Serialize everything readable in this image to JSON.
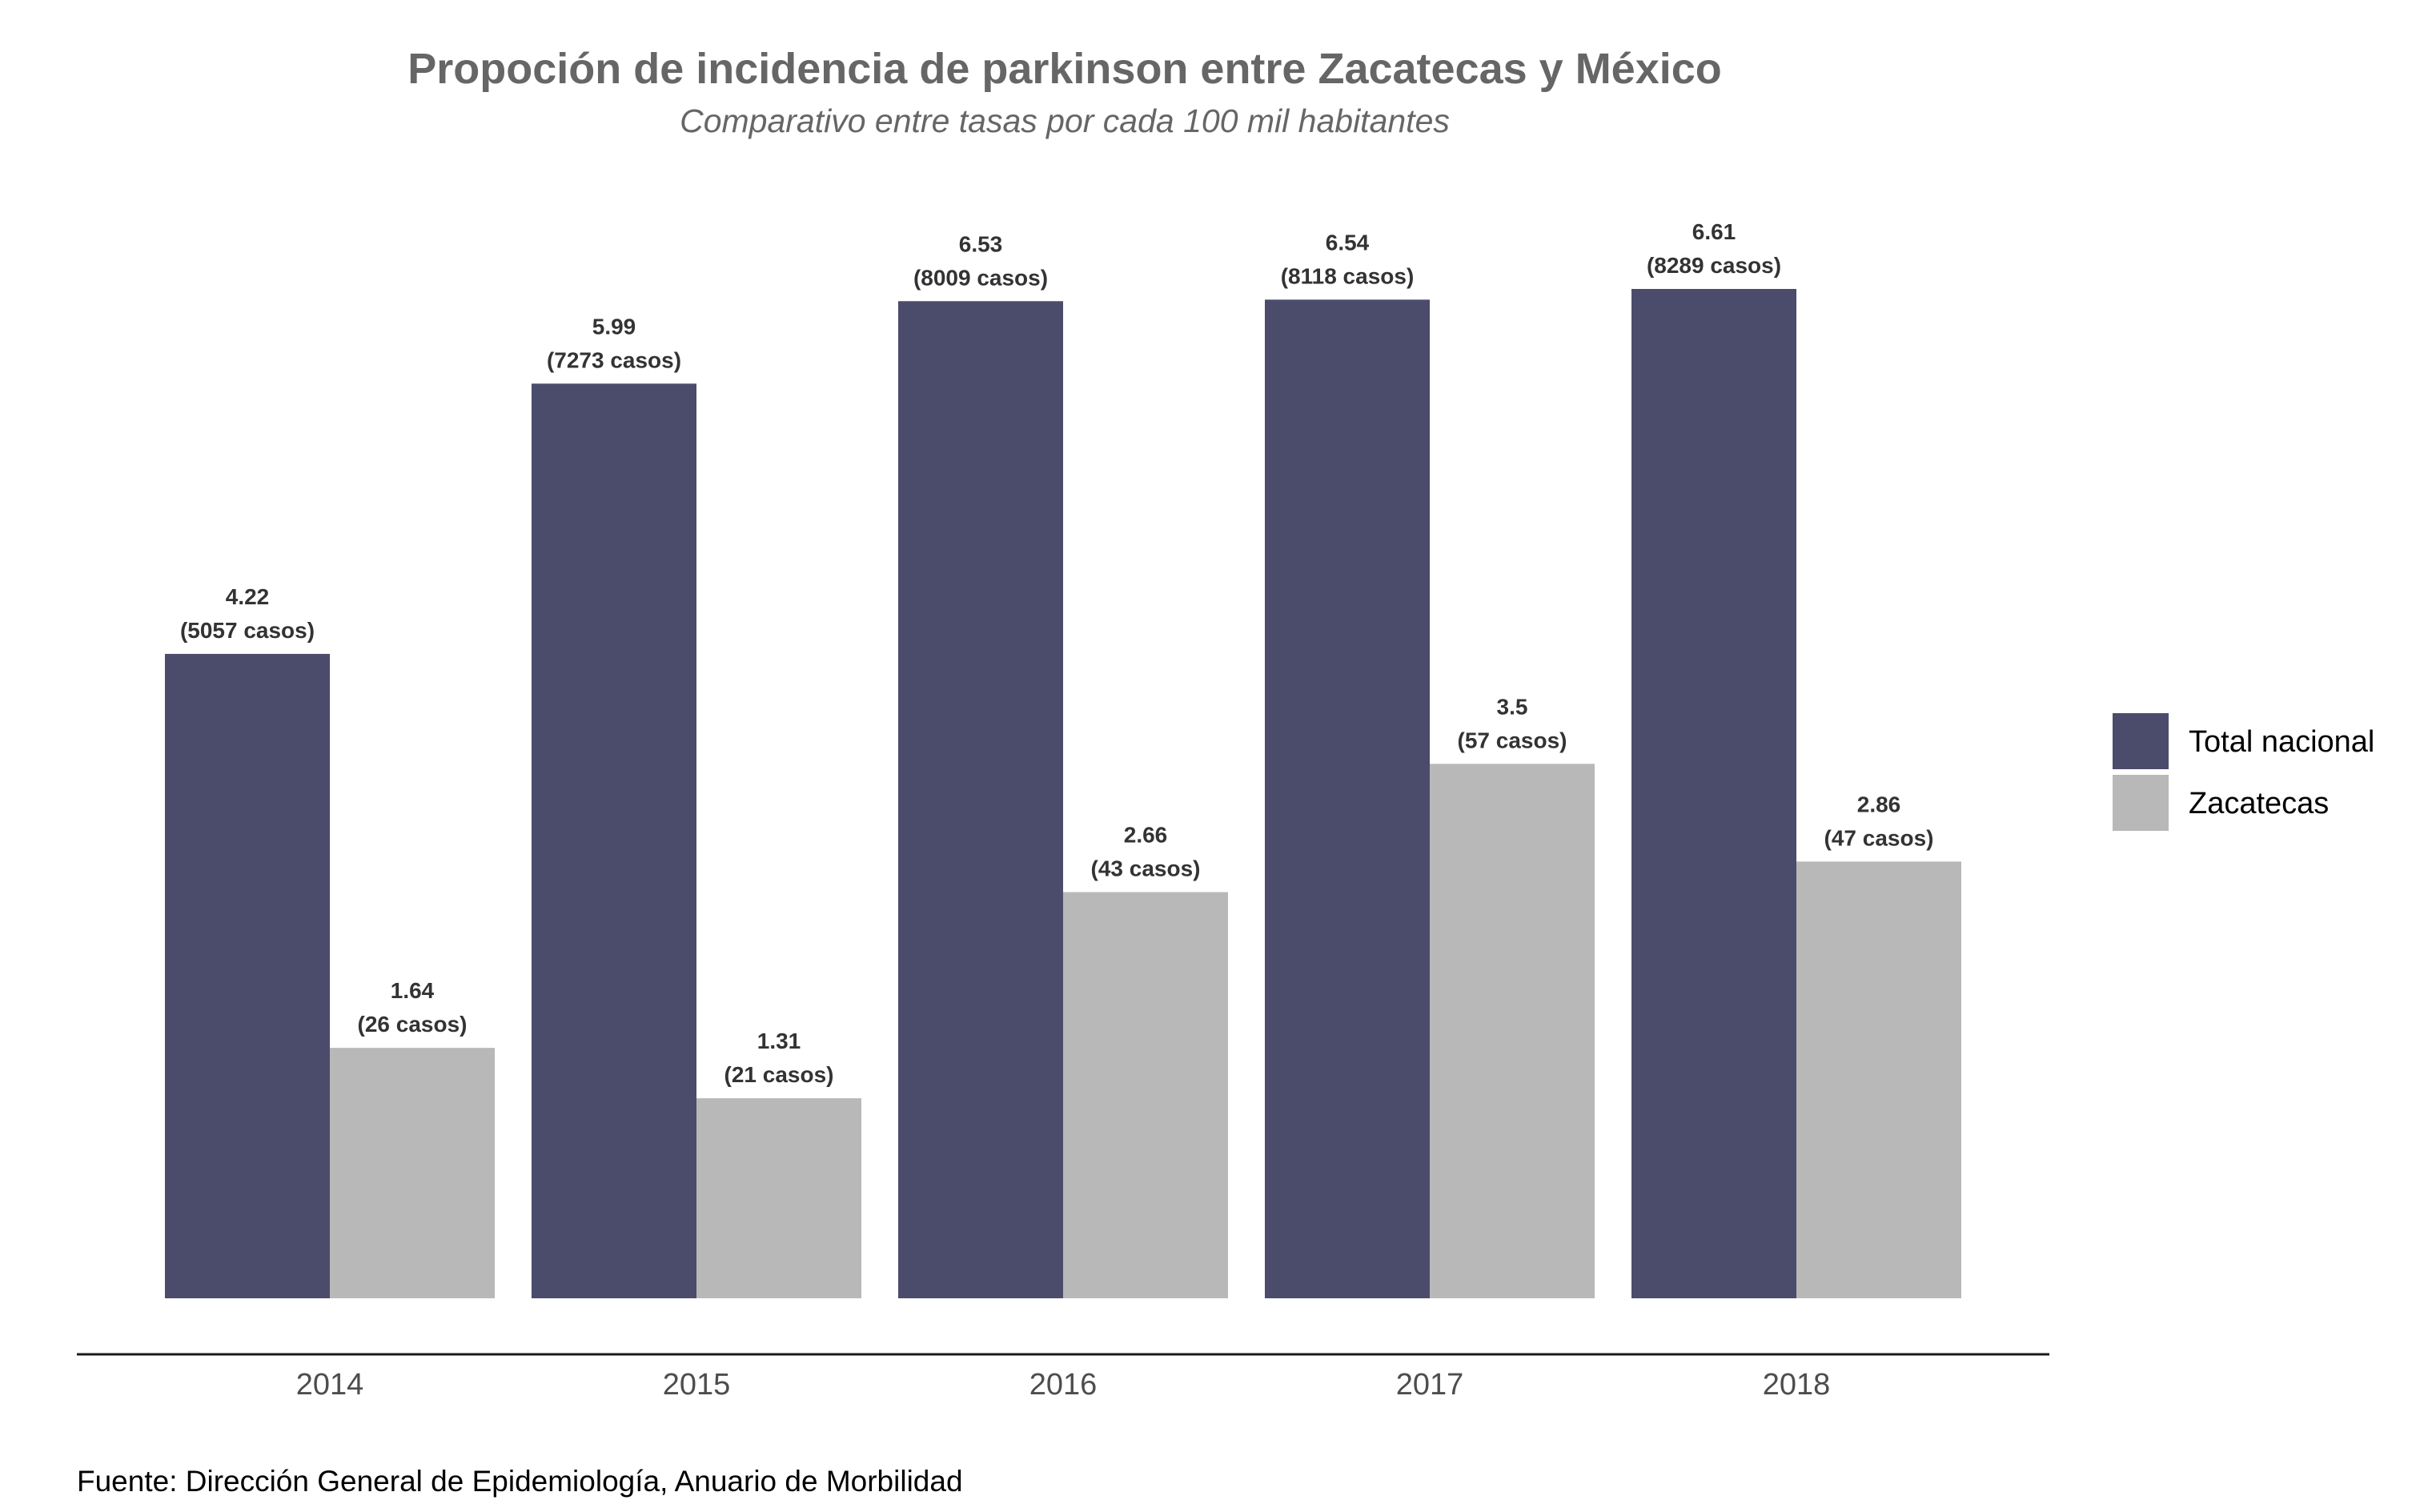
{
  "chart_data": {
    "type": "bar",
    "title": "Propoción de incidencia de parkinson entre Zacatecas y México",
    "subtitle": "Comparativo entre tasas por cada 100 mil habitantes",
    "caption": "Fuente: Dirección General de Epidemiología, Anuario de Morbilidad",
    "xlabel": "",
    "ylabel": "",
    "categories": [
      "2014",
      "2015",
      "2016",
      "2017",
      "2018"
    ],
    "ylim": [
      0,
      6.61
    ],
    "grid": false,
    "y_axis_visible": false,
    "legend_position": "right",
    "series": [
      {
        "name": "Total nacional",
        "color": "#4b4b6c",
        "values": [
          4.22,
          5.99,
          6.53,
          6.54,
          6.61
        ],
        "labels": [
          "4.22",
          "5.99",
          "6.53",
          "6.54",
          "6.61"
        ],
        "cases": [
          "(5057 casos)",
          "(7273 casos)",
          "(8009 casos)",
          "(8118 casos)",
          "(8289 casos)"
        ]
      },
      {
        "name": "Zacatecas",
        "color": "#b8b8b8",
        "values": [
          1.64,
          1.31,
          2.66,
          3.5,
          2.86
        ],
        "labels": [
          "1.64",
          "1.31",
          "2.66",
          "3.5",
          "2.86"
        ],
        "cases": [
          "(26 casos)",
          "(21 casos)",
          "(43 casos)",
          "(57 casos)",
          "(47 casos)"
        ]
      }
    ]
  }
}
